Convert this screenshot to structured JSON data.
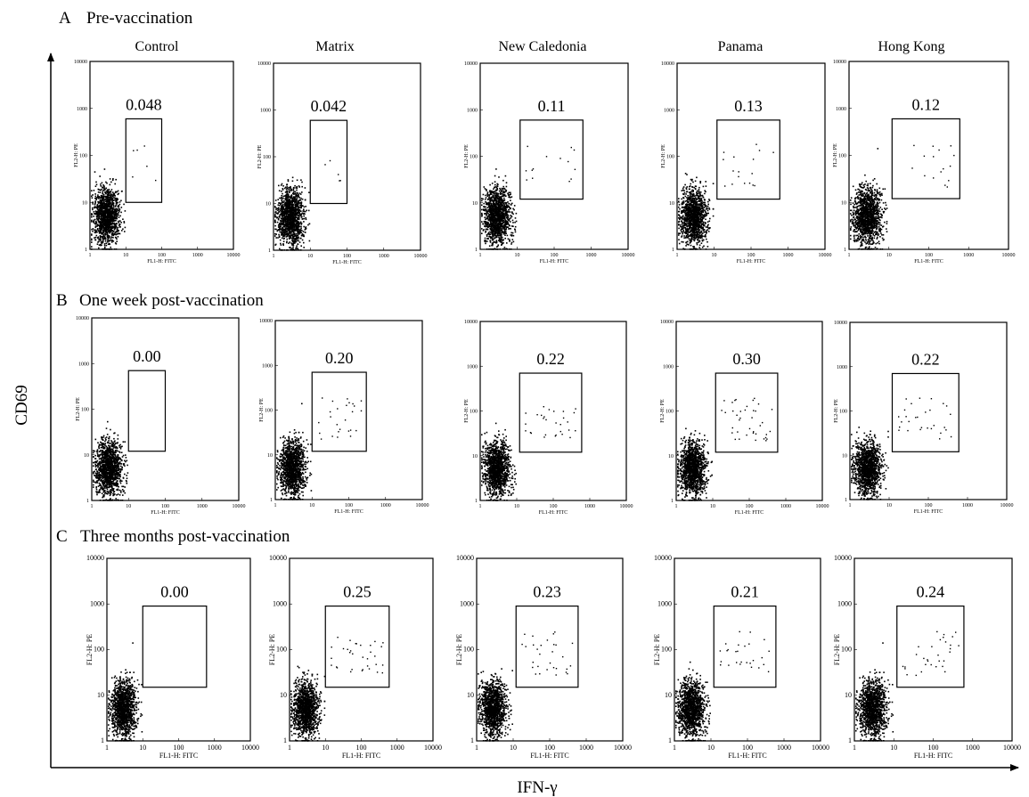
{
  "figure": {
    "x_axis_title": "IFN-γ",
    "y_axis_title": "CD69",
    "columns": [
      "Control",
      "Matrix",
      "New Caledonia",
      "Panama",
      "Hong Kong"
    ],
    "rows": [
      {
        "letter": "A",
        "title": "Pre-vaccination"
      },
      {
        "letter": "B",
        "title": "One week post-vaccination"
      },
      {
        "letter": "C",
        "title": "Three months post-vaccination"
      }
    ],
    "plot_x_label": "FL1-H: FITC",
    "plot_y_label": "FL2-H: PE",
    "tick_labels": [
      "1",
      "10",
      "100",
      "1000",
      "10000"
    ]
  },
  "chart_data": {
    "type": "scatter",
    "description_scale": "log",
    "xlim": [
      1,
      10000
    ],
    "ylim": [
      1,
      10000
    ],
    "xlabel": "FL1-H: FITC",
    "ylabel": "FL2-H: PE",
    "gate_percentages": [
      {
        "row": "A",
        "condition": "Pre-vaccination",
        "values": {
          "Control": 0.048,
          "Matrix": 0.042,
          "New Caledonia": 0.11,
          "Panama": 0.13,
          "Hong Kong": 0.12
        }
      },
      {
        "row": "B",
        "condition": "One week post-vaccination",
        "values": {
          "Control": 0.0,
          "Matrix": 0.2,
          "New Caledonia": 0.22,
          "Panama": 0.3,
          "Hong Kong": 0.22
        }
      },
      {
        "row": "C",
        "condition": "Three months post-vaccination",
        "values": {
          "Control": 0.0,
          "Matrix": 0.25,
          "New Caledonia": 0.23,
          "Panama": 0.21,
          "Hong Kong": 0.24
        }
      }
    ],
    "gate_labels": [
      [
        "0.048",
        "0.042",
        "0.11",
        "0.13",
        "0.12"
      ],
      [
        "0.00",
        "0.20",
        "0.22",
        "0.30",
        "0.22"
      ],
      [
        "0.00",
        "0.25",
        "0.23",
        "0.21",
        "0.24"
      ]
    ],
    "gate_ranges": [
      [
        {
          "x": [
            10,
            100
          ],
          "y": [
            10,
            600
          ]
        },
        {
          "x": [
            10,
            100
          ],
          "y": [
            10,
            600
          ]
        },
        {
          "x": [
            12,
            600
          ],
          "y": [
            12,
            600
          ]
        },
        {
          "x": [
            12,
            600
          ],
          "y": [
            12,
            600
          ]
        },
        {
          "x": [
            12,
            600
          ],
          "y": [
            12,
            600
          ]
        }
      ],
      [
        {
          "x": [
            10,
            100
          ],
          "y": [
            12,
            700
          ]
        },
        {
          "x": [
            10,
            300
          ],
          "y": [
            12,
            700
          ]
        },
        {
          "x": [
            12,
            600
          ],
          "y": [
            12,
            700
          ]
        },
        {
          "x": [
            12,
            600
          ],
          "y": [
            12,
            700
          ]
        },
        {
          "x": [
            12,
            600
          ],
          "y": [
            12,
            700
          ]
        }
      ],
      [
        {
          "x": [
            10,
            600
          ],
          "y": [
            15,
            900
          ]
        },
        {
          "x": [
            10,
            600
          ],
          "y": [
            15,
            900
          ]
        },
        {
          "x": [
            12,
            600
          ],
          "y": [
            15,
            900
          ]
        },
        {
          "x": [
            12,
            600
          ],
          "y": [
            15,
            900
          ]
        },
        {
          "x": [
            12,
            600
          ],
          "y": [
            15,
            900
          ]
        }
      ]
    ]
  }
}
